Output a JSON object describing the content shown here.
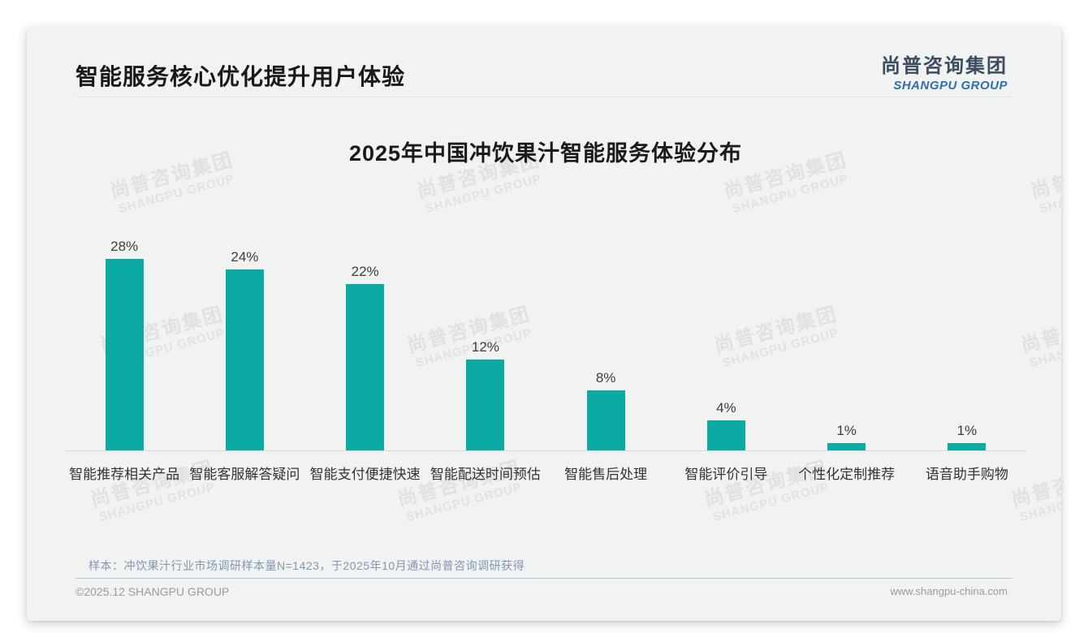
{
  "header": {
    "title": "智能服务核心优化提升用户体验",
    "logo_cn": "尚普咨询集团",
    "logo_en": "SHANGPU GROUP"
  },
  "watermark": {
    "cn": "尚普咨询集团",
    "en": "SHANGPU GROUP"
  },
  "chart_data": {
    "type": "bar",
    "title": "2025年中国冲饮果汁智能服务体验分布",
    "categories": [
      "智能推荐相关产品",
      "智能客服解答疑问",
      "智能支付便捷快速",
      "智能配送时间预估",
      "智能售后处理",
      "智能评价引导",
      "个性化定制推荐",
      "语音助手购物"
    ],
    "values": [
      28,
      24,
      22,
      12,
      8,
      4,
      1,
      1
    ],
    "value_labels": [
      "28%",
      "24%",
      "22%",
      "12%",
      "8%",
      "4%",
      "1%",
      "1%"
    ],
    "unit": "percent",
    "ylim": [
      0,
      30
    ],
    "bar_color": "#0baaa2",
    "axis_line_color": "#d9d9d9",
    "grid": false,
    "legend": false
  },
  "footnote": {
    "sample": "样本：冲饮果汁行业市场调研样本量N=1423，于2025年10月通过尚普咨询调研获得"
  },
  "footer": {
    "left": "©2025.12 SHANGPU GROUP",
    "right": "www.shangpu-china.com"
  }
}
